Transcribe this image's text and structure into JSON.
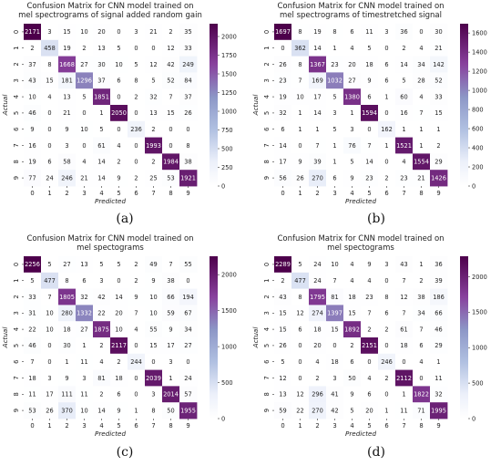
{
  "chart_data": [
    {
      "type": "heatmap",
      "panel_label": "(a)",
      "title": [
        "Confusion Matrix for CNN model trained on",
        "mel spectrograms of signal added random gain"
      ],
      "xlabel": "Predicted",
      "ylabel": "Actual",
      "categories": [
        "0",
        "1",
        "2",
        "3",
        "4",
        "5",
        "6",
        "7",
        "8",
        "9"
      ],
      "colorbar_ticks": [
        0,
        250,
        500,
        750,
        1000,
        1250,
        1500,
        1750,
        2000
      ],
      "vmax": 2171,
      "matrix": [
        [
          2171,
          3,
          15,
          10,
          20,
          0,
          3,
          21,
          2,
          35
        ],
        [
          2,
          458,
          19,
          2,
          13,
          5,
          0,
          0,
          12,
          33
        ],
        [
          37,
          8,
          1668,
          27,
          30,
          10,
          5,
          12,
          42,
          249
        ],
        [
          43,
          15,
          181,
          1296,
          37,
          6,
          8,
          5,
          52,
          84
        ],
        [
          10,
          4,
          13,
          5,
          1851,
          0,
          2,
          32,
          7,
          37
        ],
        [
          46,
          0,
          21,
          0,
          1,
          2050,
          0,
          13,
          15,
          26
        ],
        [
          9,
          0,
          9,
          10,
          5,
          0,
          236,
          2,
          0,
          0
        ],
        [
          16,
          0,
          3,
          0,
          61,
          4,
          0,
          1993,
          0,
          8
        ],
        [
          19,
          6,
          58,
          4,
          14,
          2,
          0,
          2,
          1984,
          38
        ],
        [
          77,
          24,
          246,
          21,
          14,
          9,
          2,
          25,
          53,
          1921
        ]
      ]
    },
    {
      "type": "heatmap",
      "panel_label": "(b)",
      "title": [
        "Confusion Matrix for CNN model trained on",
        "mel spectrograms of timestretched signal"
      ],
      "xlabel": "Predicted",
      "ylabel": "Actual",
      "categories": [
        "0",
        "1",
        "2",
        "3",
        "4",
        "5",
        "6",
        "7",
        "8",
        "9"
      ],
      "colorbar_ticks": [
        0,
        200,
        400,
        600,
        800,
        1000,
        1200,
        1400,
        1600
      ],
      "vmax": 1697,
      "matrix": [
        [
          1697,
          8,
          19,
          8,
          6,
          11,
          3,
          36,
          0,
          30
        ],
        [
          0,
          362,
          14,
          1,
          4,
          5,
          0,
          2,
          4,
          21
        ],
        [
          26,
          8,
          1367,
          23,
          20,
          18,
          6,
          14,
          34,
          142
        ],
        [
          23,
          7,
          169,
          1032,
          27,
          9,
          6,
          5,
          28,
          52
        ],
        [
          19,
          10,
          17,
          5,
          1380,
          6,
          1,
          60,
          4,
          33
        ],
        [
          32,
          1,
          14,
          3,
          1,
          1594,
          0,
          16,
          7,
          15
        ],
        [
          6,
          1,
          1,
          5,
          3,
          0,
          162,
          1,
          1,
          1
        ],
        [
          14,
          0,
          7,
          1,
          76,
          7,
          1,
          1521,
          1,
          2
        ],
        [
          17,
          9,
          39,
          1,
          5,
          14,
          0,
          4,
          1554,
          29
        ],
        [
          56,
          26,
          270,
          6,
          9,
          23,
          2,
          23,
          21,
          1426
        ]
      ]
    },
    {
      "type": "heatmap",
      "panel_label": "(c)",
      "title": [
        "Confusion Matrix for CNN model trained on",
        "mel spectograms"
      ],
      "xlabel": "Predicted",
      "ylabel": "Actual",
      "categories": [
        "0",
        "1",
        "2",
        "3",
        "4",
        "5",
        "6",
        "7",
        "8",
        "9"
      ],
      "colorbar_ticks": [
        0,
        500,
        1000,
        1500,
        2000
      ],
      "vmax": 2256,
      "matrix": [
        [
          2256,
          5,
          27,
          13,
          5,
          5,
          2,
          49,
          7,
          55
        ],
        [
          5,
          477,
          8,
          6,
          3,
          0,
          2,
          9,
          38,
          0
        ],
        [
          33,
          7,
          1805,
          32,
          42,
          14,
          9,
          10,
          66,
          194
        ],
        [
          31,
          10,
          280,
          1332,
          22,
          20,
          7,
          10,
          59,
          67
        ],
        [
          22,
          10,
          18,
          27,
          1875,
          10,
          4,
          55,
          9,
          34
        ],
        [
          46,
          0,
          30,
          1,
          2,
          2117,
          0,
          15,
          17,
          27
        ],
        [
          7,
          0,
          1,
          11,
          4,
          2,
          244,
          0,
          3,
          0
        ],
        [
          18,
          3,
          9,
          3,
          81,
          18,
          0,
          2039,
          1,
          24
        ],
        [
          11,
          17,
          111,
          11,
          2,
          6,
          0,
          3,
          2014,
          57
        ],
        [
          53,
          26,
          370,
          10,
          14,
          9,
          1,
          8,
          50,
          1955
        ]
      ]
    },
    {
      "type": "heatmap",
      "panel_label": "(d)",
      "title": [
        "Confusion Matrix for CNN model trained on",
        "mel spectograms"
      ],
      "xlabel": "Predicted",
      "ylabel": "Actual",
      "categories": [
        "0",
        "1",
        "2",
        "3",
        "4",
        "5",
        "6",
        "7",
        "8",
        "9"
      ],
      "colorbar_ticks": [
        0,
        500,
        1000,
        1500,
        2000
      ],
      "vmax": 2289,
      "matrix": [
        [
          2289,
          5,
          24,
          10,
          4,
          9,
          3,
          43,
          1,
          36
        ],
        [
          2,
          477,
          24,
          7,
          4,
          4,
          0,
          7,
          2,
          39
        ],
        [
          43,
          8,
          1795,
          81,
          18,
          23,
          8,
          12,
          38,
          186
        ],
        [
          15,
          12,
          274,
          1397,
          15,
          7,
          6,
          7,
          34,
          66
        ],
        [
          15,
          6,
          18,
          15,
          1892,
          2,
          2,
          61,
          7,
          46
        ],
        [
          26,
          0,
          20,
          0,
          2,
          2151,
          0,
          18,
          6,
          29
        ],
        [
          5,
          0,
          4,
          18,
          6,
          0,
          246,
          0,
          4,
          1
        ],
        [
          12,
          0,
          2,
          3,
          50,
          4,
          2,
          2112,
          0,
          11
        ],
        [
          13,
          12,
          296,
          41,
          9,
          6,
          0,
          1,
          1822,
          32
        ],
        [
          59,
          22,
          270,
          42,
          5,
          20,
          1,
          11,
          71,
          1995
        ]
      ]
    }
  ]
}
